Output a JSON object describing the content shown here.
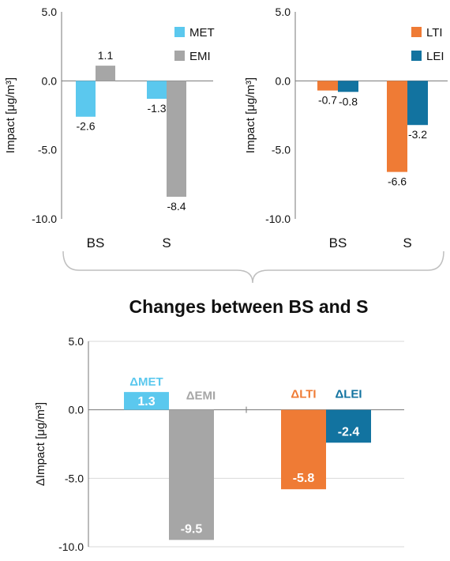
{
  "heading": "Changes between BS and S",
  "colors": {
    "MET": "#5bc8ee",
    "EMI": "#a6a6a6",
    "LTI": "#ef7b35",
    "LEI": "#1273a0",
    "axis": "#777777",
    "grid": "#d9d9d9",
    "brace": "#bfbfbf"
  },
  "chart_data": [
    {
      "type": "bar",
      "categories": [
        "BS",
        "S"
      ],
      "series": [
        {
          "name": "MET",
          "values": [
            -2.6,
            -1.3
          ],
          "labels": [
            "-2.6",
            "-1.3"
          ]
        },
        {
          "name": "EMI",
          "values": [
            1.1,
            -8.4
          ],
          "labels": [
            "1.1",
            "-8.4"
          ]
        }
      ],
      "ylabel": "Impact [μg/m³]",
      "ylim": [
        -10,
        5
      ],
      "yticks": [
        5,
        0,
        -5,
        -10
      ],
      "ytick_labels": [
        "5.0",
        "0.0",
        "-5.0",
        "-10.0"
      ],
      "legend": "top-right"
    },
    {
      "type": "bar",
      "categories": [
        "BS",
        "S"
      ],
      "series": [
        {
          "name": "LTI",
          "values": [
            -0.7,
            -6.6
          ],
          "labels": [
            "-0.7",
            "-6.6"
          ]
        },
        {
          "name": "LEI",
          "values": [
            -0.8,
            -3.2
          ],
          "labels": [
            "-0.8",
            "-3.2"
          ]
        }
      ],
      "ylabel": "Impact [μg/m³]",
      "ylim": [
        -10,
        5
      ],
      "yticks": [
        5,
        0,
        -5,
        -10
      ],
      "ytick_labels": [
        "5.0",
        "0.0",
        "-5.0",
        "-10.0"
      ],
      "legend": "top-right"
    },
    {
      "type": "bar",
      "title": "Changes between BS and S",
      "categories": [
        "ΔMET",
        "ΔEMI",
        "ΔLTI",
        "ΔLEI"
      ],
      "values": [
        1.3,
        -9.5,
        -5.8,
        -2.4
      ],
      "labels": [
        "1.3",
        "-9.5",
        "-5.8",
        "-2.4"
      ],
      "ylabel": "ΔImpact [μg/m³]",
      "ylim": [
        -10,
        5
      ],
      "yticks": [
        5,
        0,
        -5,
        -10
      ],
      "ytick_labels": [
        "5.0",
        "0.0",
        "-5.0",
        "-10.0"
      ],
      "grid": true
    }
  ]
}
